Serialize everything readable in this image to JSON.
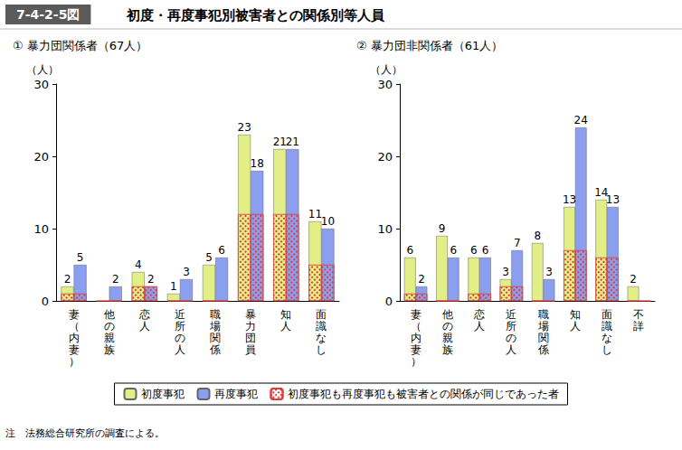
{
  "figure_id": "7-4-2-5図",
  "title": "初度・再度事犯別被害者との関係別等人員",
  "note": "注　法務総合研究所の調査による。",
  "chart_data": [
    {
      "type": "bar",
      "title": "① 暴力団関係者（67人）",
      "y_label": "（人）",
      "categories": [
        "妻（内妻）",
        "他の親族",
        "恋人",
        "近所の人",
        "職場関係",
        "暴力団員",
        "知人",
        "面識なし"
      ],
      "series": [
        {
          "name": "初度事犯",
          "color": "#e2ef86",
          "values": [
            2,
            null,
            4,
            1,
            5,
            23,
            21,
            11
          ]
        },
        {
          "name": "再度事犯",
          "color": "#8b9ff0",
          "values": [
            5,
            2,
            2,
            3,
            6,
            18,
            21,
            10
          ]
        },
        {
          "name": "初度事犯も再度事犯も被害者との関係が同じであった者",
          "color": "#e03c3c",
          "marker": "hatched",
          "data_labels": false,
          "values": [
            1,
            0,
            2,
            0,
            0,
            12,
            12,
            5
          ]
        }
      ],
      "ylim": [
        0,
        30
      ],
      "yticks": [
        0,
        10,
        20,
        30
      ],
      "grid": false,
      "data_labels": true,
      "legend": "bottom"
    },
    {
      "type": "bar",
      "title": "② 暴力団非関係者（61人）",
      "y_label": "（人）",
      "categories": [
        "妻（内妻）",
        "他の親族",
        "恋人",
        "近所の人",
        "職場関係",
        "知人",
        "面識なし",
        "不詳"
      ],
      "series": [
        {
          "name": "初度事犯",
          "color": "#e2ef86",
          "values": [
            6,
            9,
            6,
            3,
            8,
            13,
            14,
            2
          ]
        },
        {
          "name": "再度事犯",
          "color": "#8b9ff0",
          "values": [
            2,
            6,
            6,
            7,
            3,
            24,
            13,
            null
          ]
        },
        {
          "name": "初度事犯も再度事犯も被害者との関係が同じであった者",
          "color": "#e03c3c",
          "marker": "hatched",
          "data_labels": false,
          "values": [
            1,
            0,
            1,
            2,
            0,
            7,
            6,
            0
          ]
        }
      ],
      "ylim": [
        0,
        30
      ],
      "yticks": [
        0,
        10,
        20,
        30
      ],
      "grid": false,
      "data_labels": true,
      "legend": "bottom"
    }
  ]
}
